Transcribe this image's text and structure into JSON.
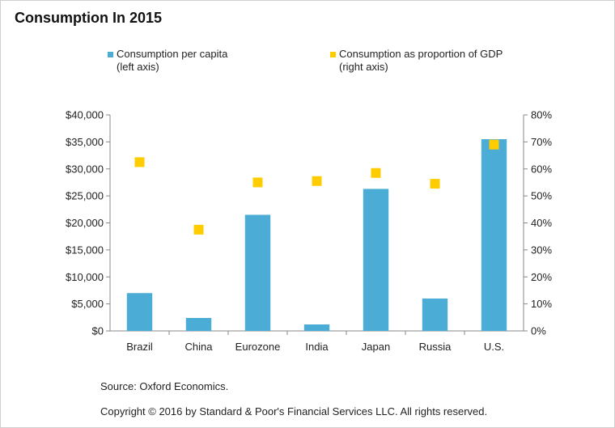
{
  "title": "Consumption In 2015",
  "legend": [
    {
      "line1": "Consumption per capita",
      "line2": "(left axis)",
      "color": "#4bacd6"
    },
    {
      "line1": "Consumption as proportion of GDP",
      "line2": "(right axis)",
      "color": "#ffcc00"
    }
  ],
  "chart_data": {
    "type": "bar",
    "categories": [
      "Brazil",
      "China",
      "Eurozone",
      "India",
      "Japan",
      "Russia",
      "U.S."
    ],
    "series": [
      {
        "name": "Consumption per capita (left axis)",
        "kind": "bar",
        "axis": "left",
        "color": "#4bacd6",
        "values": [
          7000,
          2400,
          21500,
          1200,
          26300,
          6000,
          35500
        ]
      },
      {
        "name": "Consumption as proportion of GDP (right axis)",
        "kind": "marker",
        "axis": "right",
        "color": "#ffcc00",
        "values": [
          62.5,
          37.5,
          55,
          55.5,
          58.5,
          54.5,
          69
        ]
      }
    ],
    "left_axis": {
      "range": [
        0,
        40000
      ],
      "ticks": [
        "$0",
        "$5,000",
        "$10,000",
        "$15,000",
        "$20,000",
        "$25,000",
        "$30,000",
        "$35,000",
        "$40,000"
      ]
    },
    "right_axis": {
      "range": [
        0,
        80
      ],
      "ticks": [
        "0%",
        "10%",
        "20%",
        "30%",
        "40%",
        "50%",
        "60%",
        "70%",
        "80%"
      ]
    },
    "grid": false
  },
  "footer": {
    "source": "Source: Oxford Economics.",
    "copyright": "Copyright © 2016 by Standard & Poor's Financial Services LLC. All rights reserved."
  }
}
